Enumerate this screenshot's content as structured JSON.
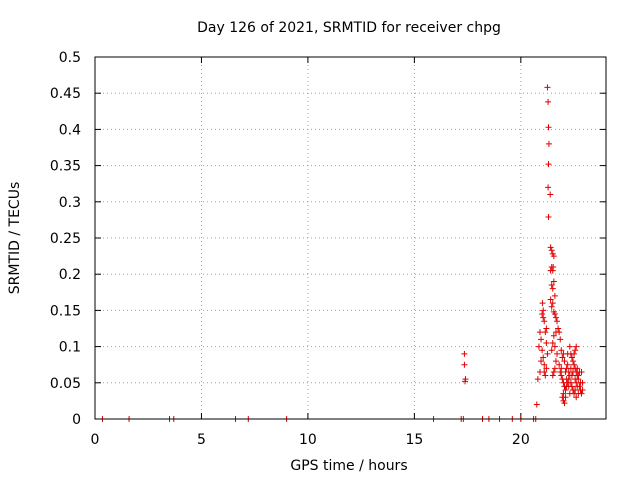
{
  "chart_data": {
    "type": "scatter",
    "title": "Day 126 of 2021, SRMTID for receiver chpg",
    "xlabel": "GPS time / hours",
    "ylabel": "SRMTID / TECUs",
    "xlim": [
      0,
      24
    ],
    "ylim": [
      0,
      0.5
    ],
    "xticks": [
      0,
      5,
      10,
      15,
      20
    ],
    "xtick_labels": [
      "0",
      "5",
      "10",
      "15",
      "20"
    ],
    "yticks": [
      0,
      0.05,
      0.1,
      0.15,
      0.2,
      0.25,
      0.3,
      0.35,
      0.4,
      0.45,
      0.5
    ],
    "ytick_labels": [
      "0",
      "0.05",
      "0.1",
      "0.15",
      "0.2",
      "0.25",
      "0.3",
      "0.35",
      "0.4",
      "0.45",
      "0.5"
    ],
    "grid": true,
    "marker": "+",
    "color": "#e00000",
    "series": [
      {
        "name": "SRMTID",
        "points": [
          [
            0.35,
            0
          ],
          [
            1.6,
            0
          ],
          [
            3.5,
            0
          ],
          [
            3.7,
            0
          ],
          [
            6.6,
            0
          ],
          [
            7.2,
            0
          ],
          [
            9.0,
            0
          ],
          [
            15.9,
            0
          ],
          [
            17.2,
            0
          ],
          [
            17.3,
            0
          ],
          [
            18.2,
            0
          ],
          [
            18.5,
            0
          ],
          [
            19.0,
            0
          ],
          [
            19.6,
            0
          ],
          [
            20.0,
            0
          ],
          [
            20.6,
            0
          ],
          [
            20.7,
            0
          ],
          [
            17.35,
            0.09
          ],
          [
            17.35,
            0.075
          ],
          [
            17.4,
            0.055
          ],
          [
            17.38,
            0.052
          ],
          [
            20.75,
            0.02
          ],
          [
            20.8,
            0.055
          ],
          [
            20.9,
            0.065
          ],
          [
            20.95,
            0.08
          ],
          [
            20.85,
            0.1
          ],
          [
            20.9,
            0.12
          ],
          [
            21.0,
            0.145
          ],
          [
            21.05,
            0.15
          ],
          [
            21.02,
            0.16
          ],
          [
            20.95,
            0.11
          ],
          [
            21.0,
            0.095
          ],
          [
            21.05,
            0.085
          ],
          [
            21.1,
            0.075
          ],
          [
            21.1,
            0.065
          ],
          [
            21.15,
            0.12
          ],
          [
            21.2,
            0.125
          ],
          [
            21.2,
            0.105
          ],
          [
            21.25,
            0.09
          ],
          [
            21.2,
            0.07
          ],
          [
            21.15,
            0.06
          ],
          [
            21.1,
            0.135
          ],
          [
            21.05,
            0.14
          ],
          [
            21.25,
            0.458
          ],
          [
            21.28,
            0.438
          ],
          [
            21.3,
            0.403
          ],
          [
            21.32,
            0.38
          ],
          [
            21.3,
            0.352
          ],
          [
            21.28,
            0.32
          ],
          [
            21.38,
            0.31
          ],
          [
            21.3,
            0.279
          ],
          [
            21.4,
            0.237
          ],
          [
            21.45,
            0.233
          ],
          [
            21.5,
            0.228
          ],
          [
            21.55,
            0.225
          ],
          [
            21.45,
            0.21
          ],
          [
            21.5,
            0.205
          ],
          [
            21.52,
            0.21
          ],
          [
            21.4,
            0.205
          ],
          [
            21.45,
            0.185
          ],
          [
            21.5,
            0.18
          ],
          [
            21.55,
            0.19
          ],
          [
            21.6,
            0.17
          ],
          [
            21.4,
            0.165
          ],
          [
            21.45,
            0.155
          ],
          [
            21.5,
            0.16
          ],
          [
            21.55,
            0.148
          ],
          [
            21.6,
            0.145
          ],
          [
            21.65,
            0.14
          ],
          [
            21.7,
            0.135
          ],
          [
            21.75,
            0.125
          ],
          [
            21.65,
            0.12
          ],
          [
            21.55,
            0.115
          ],
          [
            21.5,
            0.105
          ],
          [
            21.45,
            0.095
          ],
          [
            21.6,
            0.1
          ],
          [
            21.7,
            0.09
          ],
          [
            21.65,
            0.08
          ],
          [
            21.6,
            0.07
          ],
          [
            21.55,
            0.065
          ],
          [
            21.5,
            0.06
          ],
          [
            21.8,
            0.12
          ],
          [
            21.85,
            0.11
          ],
          [
            21.9,
            0.095
          ],
          [
            21.95,
            0.085
          ],
          [
            21.8,
            0.075
          ],
          [
            21.85,
            0.065
          ],
          [
            21.9,
            0.06
          ],
          [
            21.95,
            0.055
          ],
          [
            22.0,
            0.05
          ],
          [
            22.05,
            0.045
          ],
          [
            22.1,
            0.04
          ],
          [
            22.0,
            0.035
          ],
          [
            21.95,
            0.03
          ],
          [
            22.0,
            0.025
          ],
          [
            22.05,
            0.022
          ],
          [
            22.1,
            0.03
          ],
          [
            22.15,
            0.045
          ],
          [
            22.2,
            0.05
          ],
          [
            22.25,
            0.055
          ],
          [
            22.1,
            0.065
          ],
          [
            22.15,
            0.07
          ],
          [
            22.2,
            0.075
          ],
          [
            22.25,
            0.065
          ],
          [
            22.3,
            0.06
          ],
          [
            22.35,
            0.05
          ],
          [
            22.4,
            0.045
          ],
          [
            22.45,
            0.04
          ],
          [
            22.5,
            0.035
          ],
          [
            22.55,
            0.04
          ],
          [
            22.6,
            0.05
          ],
          [
            22.65,
            0.06
          ],
          [
            22.7,
            0.055
          ],
          [
            22.75,
            0.045
          ],
          [
            22.8,
            0.04
          ],
          [
            22.85,
            0.035
          ],
          [
            22.9,
            0.05
          ],
          [
            22.35,
            0.09
          ],
          [
            22.4,
            0.085
          ],
          [
            22.45,
            0.08
          ],
          [
            22.5,
            0.075
          ],
          [
            22.55,
            0.07
          ],
          [
            22.6,
            0.065
          ],
          [
            22.65,
            0.07
          ],
          [
            22.5,
            0.09
          ],
          [
            22.55,
            0.095
          ],
          [
            22.6,
            0.1
          ],
          [
            22.3,
            0.1
          ],
          [
            22.2,
            0.09
          ],
          [
            22.4,
            0.06
          ],
          [
            22.7,
            0.06
          ],
          [
            22.8,
            0.05
          ],
          [
            22.05,
            0.08
          ],
          [
            22.0,
            0.09
          ],
          [
            21.9,
            0.07
          ],
          [
            22.3,
            0.035
          ],
          [
            22.6,
            0.03
          ],
          [
            22.7,
            0.035
          ],
          [
            22.85,
            0.065
          ],
          [
            22.15,
            0.055
          ],
          [
            22.25,
            0.045
          ],
          [
            22.45,
            0.065
          ],
          [
            22.55,
            0.055
          ],
          [
            22.65,
            0.045
          ],
          [
            22.75,
            0.065
          ],
          [
            22.9,
            0.04
          ],
          [
            22.35,
            0.07
          ]
        ]
      }
    ]
  }
}
